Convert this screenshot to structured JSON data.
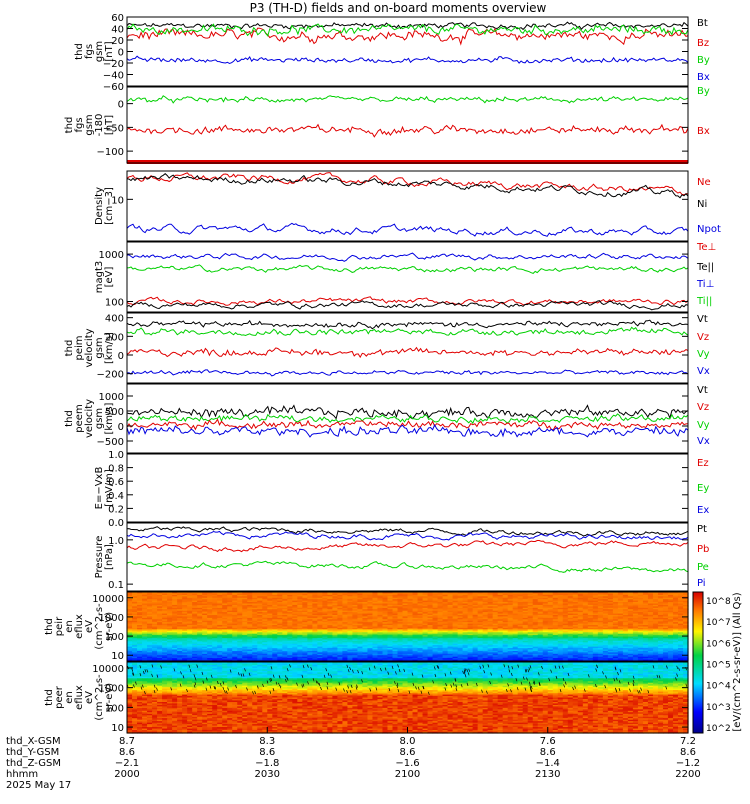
{
  "title": "P3 (TH-D) fields and on-board moments overview",
  "colors": {
    "black": "#000000",
    "red": "#e00000",
    "green": "#00d000",
    "blue": "#0000e0"
  },
  "chart_data": [
    {
      "id": "fgs",
      "type": "line",
      "ylabel": [
        "thd",
        "fgs",
        "gsm",
        "[nT]"
      ],
      "ylim": [
        -60,
        60
      ],
      "yticks": [
        "60",
        "40",
        "20",
        "0",
        "−20",
        "−40",
        "−60"
      ],
      "yticks_values": [
        60,
        40,
        20,
        0,
        -20,
        -40,
        -60
      ],
      "legend": [
        "Bt",
        "Bz",
        "By",
        "Bx"
      ],
      "series": [
        {
          "name": "Bt",
          "color": "black",
          "mean": 45,
          "noise": 5
        },
        {
          "name": "Bz",
          "color": "red",
          "mean": 28,
          "noise": 10
        },
        {
          "name": "By",
          "color": "green",
          "mean": 38,
          "noise": 8
        },
        {
          "name": "Bx",
          "color": "blue",
          "mean": -15,
          "noise": 5
        }
      ]
    },
    {
      "id": "fgs_rot",
      "type": "line",
      "ylabel": [
        "thd",
        "fgs",
        "gsm",
        "-180",
        "[nT]"
      ],
      "ylim": [
        -125,
        35
      ],
      "yticks": [
        "0",
        "−50",
        "−100"
      ],
      "yticks_values": [
        0,
        -50,
        -100
      ],
      "legend": [
        "By",
        "Bx"
      ],
      "series": [
        {
          "name": "By",
          "color": "green",
          "mean": 8,
          "noise": 6
        },
        {
          "name": "Bx",
          "color": "red",
          "mean": -55,
          "noise": 9
        }
      ]
    },
    {
      "id": "density",
      "type": "line",
      "ylabel": [
        "Density",
        "[cm−3]"
      ],
      "ylim_log": [
        2.2,
        28
      ],
      "yticks": [
        "10"
      ],
      "yticks_values": [
        10
      ],
      "legend": [
        "Ne",
        "Ni",
        "Npot"
      ],
      "series": [
        {
          "name": "Ne",
          "color": "red",
          "start": 22,
          "end": 13
        },
        {
          "name": "Ni",
          "color": "black",
          "start": 21,
          "end": 12
        },
        {
          "name": "Npot",
          "color": "blue",
          "start": 3.4,
          "end": 3.0
        }
      ]
    },
    {
      "id": "temperature",
      "type": "line",
      "ylabel": [
        "magt3",
        "[eV]"
      ],
      "ylim_log": [
        60,
        1800
      ],
      "yticks": [
        "1000",
        "100"
      ],
      "yticks_values": [
        1000,
        100
      ],
      "legend": [
        "Te⊥",
        "Te||",
        "Ti⊥",
        "Ti||"
      ],
      "series": [
        {
          "name": "Ti⊥",
          "color": "blue",
          "mean": 900
        },
        {
          "name": "Ti||",
          "color": "green",
          "mean": 480
        },
        {
          "name": "Te⊥",
          "color": "red",
          "mean": 100
        },
        {
          "name": "Te||",
          "color": "black",
          "mean": 85
        }
      ]
    },
    {
      "id": "peim_velocity",
      "type": "line",
      "ylabel": [
        "thd",
        "peim",
        "velocity",
        "gsm",
        "[km/s]"
      ],
      "ylim": [
        -300,
        450
      ],
      "yticks": [
        "400",
        "200",
        "0",
        "−200"
      ],
      "yticks_values": [
        400,
        200,
        0,
        -200
      ],
      "legend": [
        "Vt",
        "Vz",
        "Vy",
        "Vx"
      ],
      "series": [
        {
          "name": "Vt",
          "color": "black",
          "mean": 330,
          "noise": 30
        },
        {
          "name": "Vz",
          "color": "red",
          "mean": 30,
          "noise": 40
        },
        {
          "name": "Vy",
          "color": "green",
          "mean": 250,
          "noise": 35
        },
        {
          "name": "Vx",
          "color": "blue",
          "mean": -190,
          "noise": 25
        }
      ]
    },
    {
      "id": "peem_velocity",
      "type": "line",
      "ylabel": [
        "thd",
        "peem",
        "velocity",
        "gsm",
        "[km/s]"
      ],
      "ylim": [
        -900,
        1400
      ],
      "yticks": [
        "1000",
        "500",
        "0",
        "−500"
      ],
      "yticks_values": [
        1000,
        500,
        0,
        -500
      ],
      "legend": [
        "Vt",
        "Vz",
        "Vy",
        "Vx"
      ],
      "series": [
        {
          "name": "Vt",
          "color": "black",
          "mean": 450,
          "noise": 170
        },
        {
          "name": "Vy",
          "color": "green",
          "mean": 250,
          "noise": 120
        },
        {
          "name": "Vz",
          "color": "red",
          "mean": 50,
          "noise": 120
        },
        {
          "name": "Vx",
          "color": "blue",
          "mean": -180,
          "noise": 170
        }
      ]
    },
    {
      "id": "efield",
      "type": "line",
      "ylabel": [
        "E=−VxB",
        "[mV/m]"
      ],
      "ylim": [
        0,
        1
      ],
      "yticks": [
        "1.0",
        "0.8",
        "0.6",
        "0.4",
        "0.2",
        "0.0"
      ],
      "yticks_values": [
        1.0,
        0.8,
        0.6,
        0.4,
        0.2,
        0.0
      ],
      "legend": [
        "Ez",
        "Ey",
        "Ex"
      ],
      "series": []
    },
    {
      "id": "pressure",
      "type": "line",
      "ylabel": [
        "Pressure",
        "[nPa]"
      ],
      "ylim_log": [
        0.07,
        2.4
      ],
      "yticks": [
        "1.0",
        "0.1"
      ],
      "yticks_values": [
        1.0,
        0.1
      ],
      "legend": [
        "Pt",
        "Pb",
        "Pe",
        "Pi"
      ],
      "series": [
        {
          "name": "Pt",
          "color": "black",
          "start": 1.7,
          "end": 1.4
        },
        {
          "name": "Pi",
          "color": "blue",
          "start": 1.3,
          "end": 1.1
        },
        {
          "name": "Pb",
          "color": "red",
          "start": 0.65,
          "end": 0.9
        },
        {
          "name": "Pe",
          "color": "green",
          "start": 0.28,
          "end": 0.2
        }
      ]
    },
    {
      "id": "peir_spectrogram",
      "type": "heatmap",
      "ylabel": [
        "thd",
        "peir",
        "en",
        "eflux",
        "eV",
        "(cm^2-s-",
        "sr-eV)"
      ],
      "ylim_log": [
        5,
        20000
      ],
      "yticks": [
        "10000",
        "1000",
        "100",
        "10"
      ],
      "yticks_values": [
        10000,
        1000,
        100,
        10
      ]
    },
    {
      "id": "peer_spectrogram",
      "type": "heatmap",
      "ylabel": [
        "thd",
        "peer",
        "en",
        "eflux",
        "eV",
        "(cm^2-s-",
        "sr-eV)"
      ],
      "ylim_log": [
        5,
        20000
      ],
      "yticks": [
        "10000",
        "1000",
        "100",
        "10"
      ],
      "yticks_values": [
        10000,
        1000,
        100,
        10
      ]
    }
  ],
  "colorbar": {
    "label": "[eV/(cm^2-s-sr-eV)] (All Qs)",
    "ticks": [
      "10^8",
      "10^7",
      "10^6",
      "10^5",
      "10^4",
      "10^3",
      "10^2"
    ]
  },
  "x_axis": {
    "rows": [
      {
        "label": "thd_X-GSM",
        "values": [
          "8.7",
          "8.3",
          "8.0",
          "7.6",
          "7.2"
        ]
      },
      {
        "label": "thd_Y-GSM",
        "values": [
          "8.6",
          "8.6",
          "8.6",
          "8.6",
          "8.6"
        ]
      },
      {
        "label": "thd_Z-GSM",
        "values": [
          "−2.1",
          "−1.8",
          "−1.6",
          "−1.4",
          "−1.2"
        ]
      },
      {
        "label": "hhmm",
        "values": [
          "2000",
          "2030",
          "2100",
          "2130",
          "2200"
        ]
      }
    ],
    "date": "2025 May 17"
  }
}
